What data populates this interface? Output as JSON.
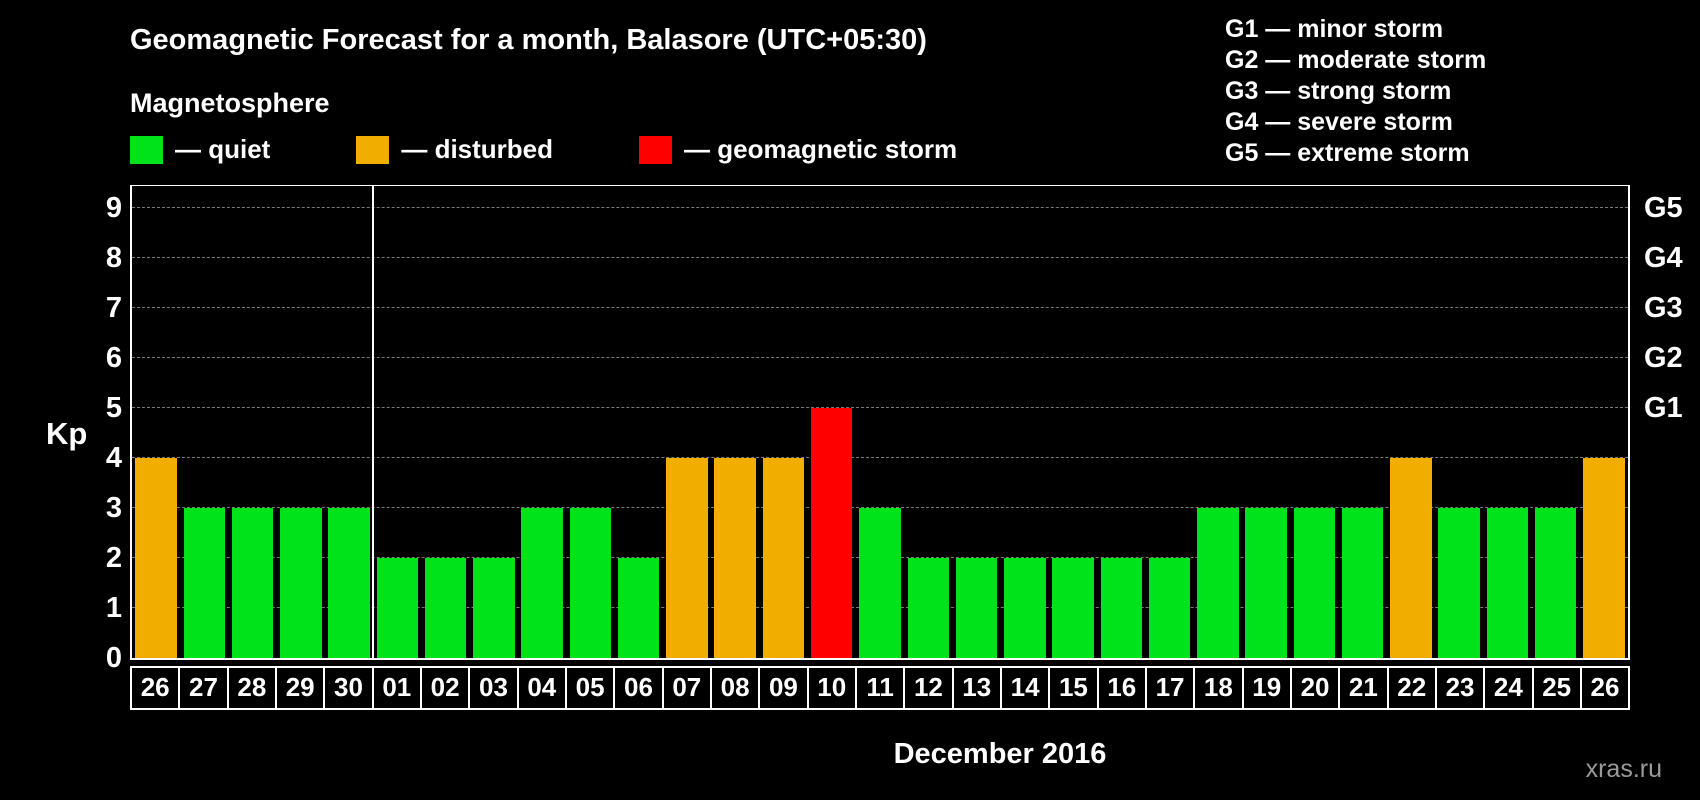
{
  "title": "Geomagnetic Forecast for a month, Balasore (UTC+05:30)",
  "subtitle": "Magnetosphere",
  "legend": {
    "quiet": "— quiet",
    "disturbed": "— disturbed",
    "storm": "— geomagnetic storm"
  },
  "storm_scale": {
    "g1": "G1 — minor storm",
    "g2": "G2 — moderate storm",
    "g3": "G3 — strong storm",
    "g4": "G4 — severe storm",
    "g5": "G5 — extreme storm"
  },
  "colors": {
    "quiet": "#00e31b",
    "disturbed": "#f2ae00",
    "storm": "#ff0000",
    "grid": "#7a7a7a",
    "frame": "#ffffff"
  },
  "axes": {
    "kp_label": "Kp",
    "y_ticks": [
      0,
      1,
      2,
      3,
      4,
      5,
      6,
      7,
      8,
      9
    ],
    "right_ticks": [
      {
        "kp": 5,
        "label": "G1"
      },
      {
        "kp": 6,
        "label": "G2"
      },
      {
        "kp": 7,
        "label": "G3"
      },
      {
        "kp": 8,
        "label": "G4"
      },
      {
        "kp": 9,
        "label": "G5"
      }
    ],
    "xlabel": "December 2016"
  },
  "watermark": "xras.ru",
  "chart_data": {
    "type": "bar",
    "title": "Geomagnetic Forecast for a month, Balasore (UTC+05:30)",
    "xlabel": "December 2016",
    "ylabel": "Kp",
    "ylim": [
      0,
      9.5
    ],
    "grid": true,
    "legend_position": "top-left",
    "categories": [
      "26",
      "27",
      "28",
      "29",
      "30",
      "01",
      "02",
      "03",
      "04",
      "05",
      "06",
      "07",
      "08",
      "09",
      "10",
      "11",
      "12",
      "13",
      "14",
      "15",
      "16",
      "17",
      "18",
      "19",
      "20",
      "21",
      "22",
      "23",
      "24",
      "25",
      "26"
    ],
    "values": [
      4,
      3,
      3,
      3,
      3,
      2,
      2,
      2,
      3,
      3,
      2,
      4,
      4,
      4,
      5,
      3,
      2,
      2,
      2,
      2,
      2,
      2,
      3,
      3,
      3,
      3,
      4,
      3,
      3,
      3,
      4
    ],
    "statuses": [
      "disturbed",
      "quiet",
      "quiet",
      "quiet",
      "quiet",
      "quiet",
      "quiet",
      "quiet",
      "quiet",
      "quiet",
      "quiet",
      "disturbed",
      "disturbed",
      "disturbed",
      "storm",
      "quiet",
      "quiet",
      "quiet",
      "quiet",
      "quiet",
      "quiet",
      "quiet",
      "quiet",
      "quiet",
      "quiet",
      "quiet",
      "disturbed",
      "quiet",
      "quiet",
      "quiet",
      "disturbed"
    ],
    "month_separator_after_index": 4
  }
}
